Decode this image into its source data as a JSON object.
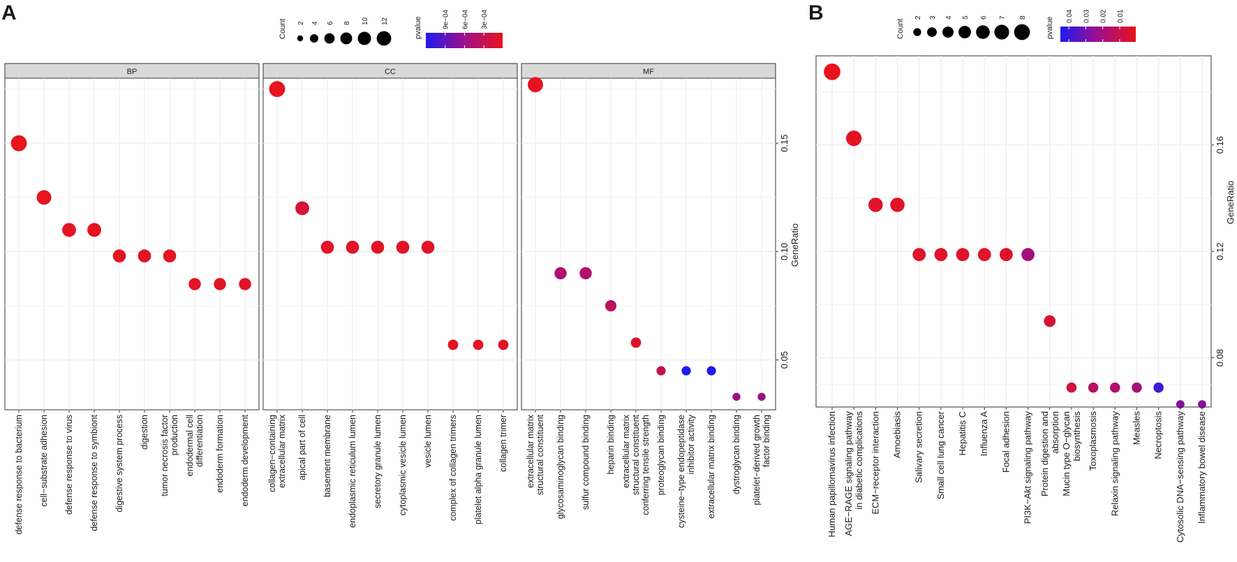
{
  "panel_labels": {
    "a": "A",
    "b": "B"
  },
  "scale_text": {
    "count_label": "Count",
    "pvalue_label": "pvalue",
    "ylabel": "GeneRatio"
  },
  "colors": {
    "low_p": "#e8131d",
    "mid_p": "#b0106e",
    "high_p": "#1f1af0",
    "strip": "#d9d9d9",
    "grid": "#ececec",
    "border": "#333333"
  },
  "chart_data": [
    {
      "id": "A",
      "type": "scatter",
      "subtype": "dotplot",
      "ylabel": "GeneRatio",
      "ylim": [
        0.027,
        0.18
      ],
      "yticks": [
        0.05,
        0.1,
        0.15
      ],
      "ytick_labels": [
        "0.05",
        "0.10",
        "0.15"
      ],
      "size_legend": {
        "title": "Count",
        "values": [
          2,
          4,
          6,
          8,
          10,
          12
        ],
        "labels": [
          "2",
          "4",
          "6",
          "8",
          "10",
          "12"
        ]
      },
      "color_legend": {
        "title": "pvalue",
        "range": [
          1e-05,
          0.0012
        ],
        "ticks": [
          0.0009,
          0.0006,
          0.0003
        ],
        "labels": [
          "9e−04",
          "6e−04",
          "3e−04"
        ]
      },
      "facets": [
        {
          "name": "BP",
          "categories": [
            [
              "defense response to bacterium"
            ],
            [
              "cell−substrate adhesion"
            ],
            [
              "defense response to virus"
            ],
            [
              "defense response to symbiont"
            ],
            [
              "digestive system process"
            ],
            [
              "digestion"
            ],
            [
              "tumor necrosis factor",
              "production"
            ],
            [
              "endodermal cell",
              "differentiation"
            ],
            [
              "endoderm formation"
            ],
            [
              "endoderm development"
            ]
          ],
          "gene_ratio": [
            0.15,
            0.125,
            0.11,
            0.11,
            0.098,
            0.098,
            0.098,
            0.085,
            0.085,
            0.085
          ],
          "count": [
            12,
            10,
            9,
            9,
            8,
            8,
            8,
            7,
            7,
            7
          ],
          "pvalue": [
            2e-05,
            3e-05,
            3e-05,
            3e-05,
            5e-05,
            5e-05,
            5e-05,
            6e-05,
            6e-05,
            6e-05
          ]
        },
        {
          "name": "CC",
          "categories": [
            [
              "collagen−containing",
              "extracellular matrix"
            ],
            [
              "apical part of cell"
            ],
            [
              "basement membrane"
            ],
            [
              "endoplasmic reticulum lumen"
            ],
            [
              "secretory granule lumen"
            ],
            [
              "cytoplasmic vesicle lumen"
            ],
            [
              "vesicle lumen"
            ],
            [
              "complex of collagen trimers"
            ],
            [
              "platelet alpha granule lumen"
            ],
            [
              "collagen trimer"
            ]
          ],
          "gene_ratio": [
            0.175,
            0.12,
            0.102,
            0.102,
            0.102,
            0.102,
            0.102,
            0.057,
            0.057,
            0.057
          ],
          "count": [
            12,
            9,
            8,
            8,
            8,
            8,
            8,
            5,
            5,
            5
          ],
          "pvalue": [
            2e-05,
            0.0002,
            8e-05,
            8e-05,
            8e-05,
            8e-05,
            8e-05,
            5e-05,
            5e-05,
            0.0001
          ]
        },
        {
          "name": "MF",
          "categories": [
            [
              "extracellular matrix",
              "structural constituent"
            ],
            [
              "glycosaminoglycan binding"
            ],
            [
              "sulfur compound binding"
            ],
            [
              "heparin binding"
            ],
            [
              "extracellular matrix",
              "structural constituent",
              "conferring tensile strength"
            ],
            [
              "proteoglycan binding"
            ],
            [
              "cysteine−type endopeptidase",
              "inhibitor activity"
            ],
            [
              "extracellular matrix binding"
            ],
            [
              "dystroglycan binding"
            ],
            [
              "platelet−derived growth",
              "factor binding"
            ]
          ],
          "gene_ratio": [
            0.177,
            0.09,
            0.09,
            0.075,
            0.058,
            0.045,
            0.045,
            0.045,
            0.033,
            0.033
          ],
          "count": [
            11,
            7,
            7,
            6,
            5,
            4,
            4,
            4,
            3,
            3
          ],
          "pvalue": [
            2e-05,
            0.0006,
            0.0006,
            0.0005,
            0.0001,
            0.0004,
            0.0012,
            0.0012,
            0.0007,
            0.0007
          ]
        }
      ]
    },
    {
      "id": "B",
      "type": "scatter",
      "subtype": "dotplot",
      "ylabel": "GeneRatio",
      "ylim": [
        0.0615,
        0.1935
      ],
      "yticks": [
        0.08,
        0.12,
        0.16
      ],
      "ytick_labels": [
        "0.08",
        "0.12",
        "0.16"
      ],
      "size_legend": {
        "title": "Count",
        "values": [
          2,
          3,
          4,
          5,
          6,
          7,
          8
        ],
        "labels": [
          "2",
          "3",
          "4",
          "5",
          "6",
          "7",
          "8"
        ]
      },
      "color_legend": {
        "title": "pvalue",
        "range": [
          0.0005,
          0.045
        ],
        "ticks": [
          0.04,
          0.03,
          0.02,
          0.01
        ],
        "labels": [
          "0.04",
          "0.03",
          "0.02",
          "0.01"
        ]
      },
      "categories": [
        [
          "Human papillomavirus infection"
        ],
        [
          "AGE−RAGE signaling pathway",
          "in diabetic complications"
        ],
        [
          "ECM−receptor interaction"
        ],
        [
          "Amoebiasis"
        ],
        [
          "Salivary secretion"
        ],
        [
          "Small cell lung cancer"
        ],
        [
          "Hepatitis C"
        ],
        [
          "Influenza A"
        ],
        [
          "Focal adhesion"
        ],
        [
          "PI3K−Akt signaling pathway"
        ],
        [
          "Protein digestion and",
          "absorption"
        ],
        [
          "Mucin type O−glycan",
          "biosynthesis"
        ],
        [
          "Toxoplasmosis"
        ],
        [
          "Relaxin signaling pathway"
        ],
        [
          "Measles"
        ],
        [
          "Necroptosis"
        ],
        [
          "Cytosolic DNA−sensing pathway"
        ],
        [
          "Inflammatory bowel disease"
        ]
      ],
      "gene_ratio": [
        0.1875,
        0.1625,
        0.1375,
        0.1375,
        0.1188,
        0.1188,
        0.1188,
        0.1188,
        0.1188,
        0.1188,
        0.0938,
        0.0688,
        0.0688,
        0.0688,
        0.0688,
        0.0688,
        0.0625,
        0.0625
      ],
      "count": [
        8,
        7,
        6,
        6,
        5,
        5,
        5,
        5,
        5,
        5,
        4,
        3,
        3,
        3,
        3,
        3,
        2,
        2
      ],
      "pvalue": [
        0.0005,
        0.002,
        0.003,
        0.003,
        0.004,
        0.004,
        0.004,
        0.004,
        0.005,
        0.025,
        0.008,
        0.01,
        0.02,
        0.022,
        0.025,
        0.04,
        0.03,
        0.03
      ]
    }
  ]
}
